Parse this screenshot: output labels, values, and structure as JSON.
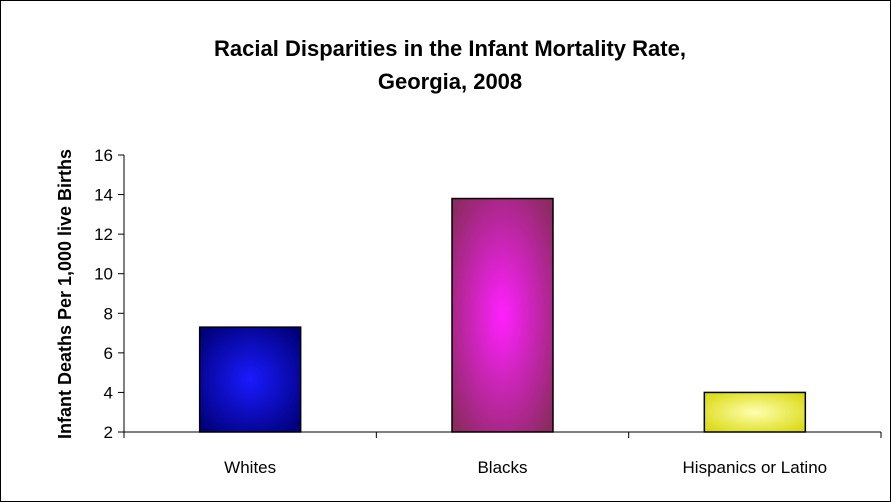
{
  "chart_data": {
    "type": "bar",
    "title": "Racial Disparities in the Infant Mortality Rate, Georgia, 2008",
    "title_lines": [
      "Racial Disparities in the Infant Mortality Rate,",
      "Georgia, 2008"
    ],
    "xlabel": "",
    "ylabel": "Infant Deaths Per 1,000 live Births",
    "categories": [
      "Whites",
      "Blacks",
      "Hispanics or Latino"
    ],
    "values": [
      7.3,
      13.8,
      4.0
    ],
    "ylim": [
      2,
      16
    ],
    "yticks": [
      2,
      4,
      6,
      8,
      10,
      12,
      14,
      16
    ],
    "grid": false,
    "legend": "none",
    "bar_colors": [
      {
        "edge": "#00007a",
        "center": "#1a1aff"
      },
      {
        "edge": "#8e2a63",
        "center": "#ff20ff"
      },
      {
        "edge": "#d9d90f",
        "center": "#ffffb0"
      }
    ]
  }
}
